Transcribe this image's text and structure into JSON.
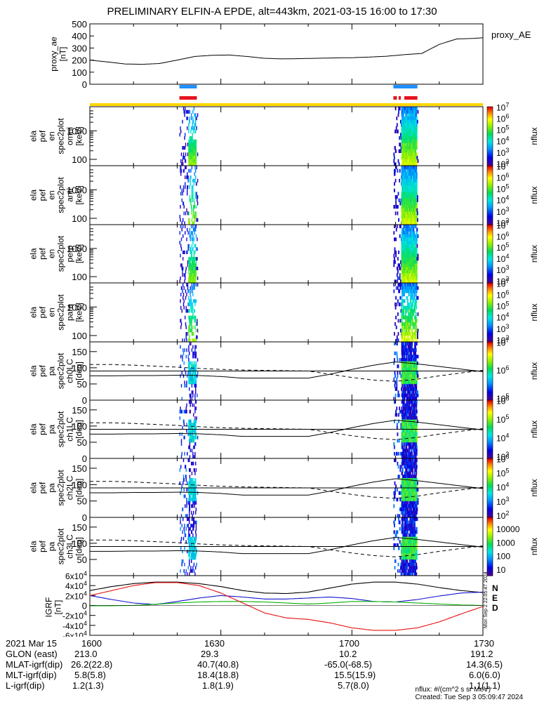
{
  "title": "PRELIMINARY ELFIN-A EPDE, alt=443km, 2021-03-15 16:00 to 17:30",
  "colors": {
    "orbit_blue": "#1e90ff",
    "orbit_red": "#e8141e",
    "status_yellow": "#ffd700",
    "bx": "#000000",
    "by": "#1111cc",
    "bz": "#00b000",
    "bt": "#e81010"
  },
  "chart_data": [
    {
      "type": "line",
      "name": "proxy_ae",
      "ylabel": "proxy_ae [nT]",
      "legend": "proxy_AE",
      "ylim": [
        0,
        500
      ],
      "yticks": [
        "0",
        "100",
        "200",
        "300",
        "400",
        "500"
      ],
      "x_min": [
        0,
        4,
        8,
        12,
        16,
        20,
        24,
        28,
        32,
        36,
        40,
        44,
        48,
        52,
        56,
        60,
        64,
        68,
        72,
        76,
        80,
        84,
        88,
        90
      ],
      "values": [
        200,
        185,
        168,
        165,
        172,
        200,
        230,
        240,
        242,
        230,
        215,
        210,
        212,
        215,
        218,
        220,
        225,
        232,
        245,
        255,
        330,
        375,
        380,
        385
      ]
    },
    {
      "type": "heatmap",
      "name": "omni",
      "ylabel": "ela pef en spec2plot omni [keV]",
      "yscale": "log",
      "yticks": [
        "100",
        "1000"
      ],
      "zlabel": "nflux",
      "ztick_exponents": [
        2,
        3,
        4,
        5,
        6,
        7
      ],
      "zscale": "log",
      "data_intervals_min": [
        [
          20.5,
          24.5
        ],
        [
          69.5,
          75
        ]
      ]
    },
    {
      "type": "heatmap",
      "name": "anti",
      "ylabel": "ela pef en spec2plot anti [keV]",
      "yscale": "log",
      "yticks": [
        "100",
        "1000"
      ],
      "zlabel": "nflux",
      "ztick_exponents": [
        2,
        3,
        4,
        5,
        6,
        7
      ],
      "zscale": "log",
      "data_intervals_min": [
        [
          20.5,
          24.5
        ],
        [
          69.5,
          75
        ]
      ]
    },
    {
      "type": "heatmap",
      "name": "perp",
      "ylabel": "ela pef en spec2plot perp [keV]",
      "yscale": "log",
      "yticks": [
        "100",
        "1000"
      ],
      "zlabel": "nflux",
      "ztick_exponents": [
        2,
        3,
        4,
        5,
        6,
        7
      ],
      "zscale": "log",
      "data_intervals_min": [
        [
          20.5,
          24.5
        ],
        [
          69.5,
          75
        ]
      ]
    },
    {
      "type": "heatmap",
      "name": "para",
      "ylabel": "ela pef en spec2plot para [keV]",
      "yscale": "log",
      "yticks": [
        "100",
        "1000"
      ],
      "zlabel": "nflux",
      "ztick_exponents": [
        2,
        3,
        4,
        5,
        6,
        7
      ],
      "zscale": "log",
      "data_intervals_min": [
        [
          20.5,
          24.5
        ],
        [
          69.5,
          75
        ]
      ]
    },
    {
      "type": "heatmap",
      "name": "ch0LC",
      "ylabel": "ela pef pa spec2plot ch0LC [deg]",
      "yticks": [
        "0",
        "50",
        "100",
        "150"
      ],
      "ylim": [
        0,
        180
      ],
      "zlabel": "nflux",
      "ztick_exponents": [
        5,
        6,
        7
      ],
      "zscale": "log",
      "data_intervals_min": [
        [
          20.5,
          24.5
        ],
        [
          69.5,
          75
        ]
      ]
    },
    {
      "type": "heatmap",
      "name": "ch1LC",
      "ylabel": "ela pef pa spec2plot ch1LC [deg]",
      "yticks": [
        "0",
        "50",
        "100",
        "150"
      ],
      "ylim": [
        0,
        180
      ],
      "zlabel": "nflux",
      "ztick_exponents": [
        3,
        4,
        5,
        6
      ],
      "zscale": "log",
      "data_intervals_min": [
        [
          20.5,
          24.5
        ],
        [
          69.5,
          75
        ]
      ]
    },
    {
      "type": "heatmap",
      "name": "ch2LC",
      "ylabel": "ela pef pa spec2plot ch2LC [deg]",
      "yticks": [
        "0",
        "50",
        "100",
        "150"
      ],
      "ylim": [
        0,
        180
      ],
      "zlabel": "nflux",
      "ztick_exponents": [
        2,
        3,
        4,
        5,
        6
      ],
      "zscale": "log",
      "data_intervals_min": [
        [
          20.5,
          24.5
        ],
        [
          69.5,
          75
        ]
      ]
    },
    {
      "type": "heatmap",
      "name": "ch3LC",
      "ylabel": "ela pef pa spec2plot ch3LC [deg]",
      "yticks": [
        "50",
        "100",
        "150"
      ],
      "ylim": [
        0,
        180
      ],
      "zlabel": "nflux",
      "zticks": [
        "10",
        "100",
        "1000",
        "10000"
      ],
      "zscale": "log",
      "data_intervals_min": [
        [
          20.5,
          24.5
        ],
        [
          69.5,
          75
        ]
      ]
    },
    {
      "type": "line",
      "name": "IGRF",
      "ylabel": "IGRF [nT]",
      "ylim": [
        -60000,
        60000
      ],
      "yticks": [
        "-6x10^4",
        "-4x10^4",
        "-2x10^4",
        "0",
        "2x10^4",
        "4x10^4",
        "6x10^4"
      ],
      "legend": [
        "N",
        "E",
        "D"
      ],
      "x_min": [
        0,
        5,
        10,
        15,
        20,
        25,
        30,
        35,
        40,
        45,
        50,
        55,
        60,
        65,
        70,
        75,
        80,
        85,
        90
      ],
      "series": [
        {
          "key": "bt_black",
          "values": [
            30000,
            38000,
            44000,
            47000,
            47000,
            44000,
            38000,
            30000,
            25000,
            24000,
            27000,
            35000,
            43000,
            47000,
            47000,
            43000,
            36000,
            30000,
            26000
          ]
        },
        {
          "key": "by_blue",
          "values": [
            20000,
            12000,
            5000,
            2000,
            8000,
            15000,
            20000,
            17000,
            13000,
            13000,
            15000,
            17000,
            14000,
            8000,
            7000,
            12000,
            19000,
            25000,
            27000
          ]
        },
        {
          "key": "bz_green",
          "values": [
            -500,
            -500,
            0,
            2500,
            5000,
            7000,
            8000,
            8000,
            7000,
            5000,
            3000,
            5000,
            8000,
            8000,
            7000,
            5000,
            3000,
            1000,
            0
          ]
        },
        {
          "key": "bx_red",
          "values": [
            20000,
            30000,
            40000,
            46000,
            46000,
            40000,
            25000,
            5000,
            -15000,
            -25000,
            -28000,
            -35000,
            -45000,
            -50000,
            -50000,
            -45000,
            -33000,
            -17000,
            -2000
          ]
        }
      ]
    }
  ],
  "timeaxis": {
    "tick_labels": [
      "1600",
      "1630",
      "1700",
      "1730"
    ],
    "tick_minutes": [
      0,
      30,
      60,
      90
    ]
  },
  "footer": {
    "row_labels": [
      "2021 Mar 15",
      "GLON (east)",
      "MLAT-igrf(dip)",
      "MLT-igrf(dip)",
      "L-igrf(dip)"
    ],
    "col0": [
      "1600",
      "213.0",
      "26.2(22.8)",
      "5.8(5.8)",
      "1.2(1.3)"
    ],
    "col1": [
      "1630",
      "29.3",
      "40.7(40.8)",
      "18.4(18.8)",
      "1.8(1.9)"
    ],
    "col2": [
      "1700",
      "10.2",
      "-65.0(-68.5)",
      "15.5(15.9)",
      "5.7(8.0)"
    ],
    "col3": [
      "1730",
      "191.2",
      "14.3(6.5)",
      "6.0(6.0)",
      "1.1(1.1)"
    ],
    "note1": "nflux: #/(cm^2 s sr MeV)",
    "note2": "Created: Tue Sep  3 05:09:47 2024",
    "side_stamp": "Mon Sep  2 22:05:47 2024"
  }
}
